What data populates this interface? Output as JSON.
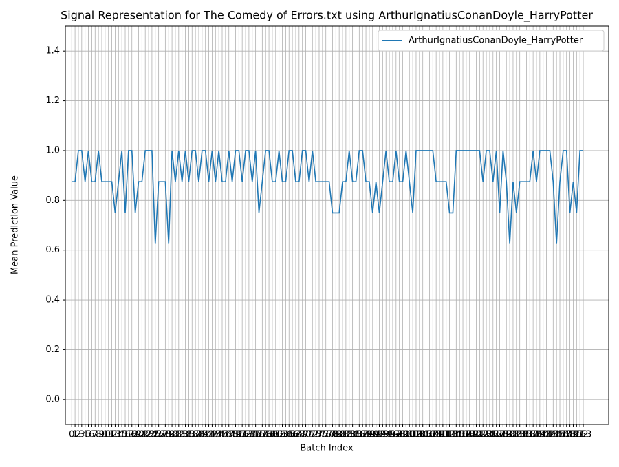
{
  "chart_data": {
    "type": "line",
    "title": "Signal Representation for The Comedy of Errors.txt using ArthurIgnatiusConanDoyle_HarryPotter",
    "x_label": "Batch Index",
    "y_label": "Mean Prediction Value",
    "x": [
      0,
      1,
      2,
      3,
      4,
      5,
      6,
      7,
      8,
      9,
      10,
      11,
      12,
      13,
      14,
      15,
      16,
      17,
      18,
      19,
      20,
      21,
      22,
      23,
      24,
      25,
      26,
      27,
      28,
      29,
      30,
      31,
      32,
      33,
      34,
      35,
      36,
      37,
      38,
      39,
      40,
      41,
      42,
      43,
      44,
      45,
      46,
      47,
      48,
      49,
      50,
      51,
      52,
      53,
      54,
      55,
      56,
      57,
      58,
      59,
      60,
      61,
      62,
      63,
      64,
      65,
      66,
      67,
      68,
      69,
      70,
      71,
      72,
      73,
      74,
      75,
      76,
      77,
      78,
      79,
      80,
      81,
      82,
      83,
      84,
      85,
      86,
      87,
      88,
      89,
      90,
      91,
      92,
      93,
      94,
      95,
      96,
      97,
      98,
      99,
      100,
      101,
      102,
      103,
      104,
      105,
      106,
      107,
      108,
      109,
      110,
      111,
      112,
      113,
      114,
      115,
      116,
      117,
      118,
      119,
      120,
      121,
      122,
      123,
      124,
      125,
      126,
      127,
      128,
      129,
      130,
      131,
      132,
      133,
      134,
      135,
      136,
      137,
      138,
      139,
      140,
      141,
      142,
      143,
      144,
      145,
      146,
      147,
      148,
      149,
      150,
      151,
      152,
      153
    ],
    "series": [
      {
        "name": "ArthurIgnatiusConanDoyle_HarryPotter",
        "color": "#1f77b4",
        "values": [
          0.875,
          0.875,
          1.0,
          1.0,
          0.875,
          1.0,
          0.875,
          0.875,
          1.0,
          0.875,
          0.875,
          0.875,
          0.875,
          0.75,
          0.875,
          1.0,
          0.75,
          1.0,
          1.0,
          0.75,
          0.875,
          0.875,
          1.0,
          1.0,
          1.0,
          0.625,
          0.875,
          0.875,
          0.875,
          0.625,
          1.0,
          0.875,
          1.0,
          0.875,
          1.0,
          0.875,
          1.0,
          1.0,
          0.875,
          1.0,
          1.0,
          0.875,
          1.0,
          0.875,
          1.0,
          0.875,
          0.875,
          1.0,
          0.875,
          1.0,
          1.0,
          0.875,
          1.0,
          1.0,
          0.875,
          1.0,
          0.75,
          0.875,
          1.0,
          1.0,
          0.875,
          0.875,
          1.0,
          0.875,
          0.875,
          1.0,
          1.0,
          0.875,
          0.875,
          1.0,
          1.0,
          0.875,
          1.0,
          0.875,
          0.875,
          0.875,
          0.875,
          0.875,
          0.75,
          0.75,
          0.75,
          0.875,
          0.875,
          1.0,
          0.875,
          0.875,
          1.0,
          1.0,
          0.875,
          0.875,
          0.75,
          0.875,
          0.75,
          0.875,
          1.0,
          0.875,
          0.875,
          1.0,
          0.875,
          0.875,
          1.0,
          0.875,
          0.75,
          1.0,
          1.0,
          1.0,
          1.0,
          1.0,
          1.0,
          0.875,
          0.875,
          0.875,
          0.875,
          0.75,
          0.75,
          1.0,
          1.0,
          1.0,
          1.0,
          1.0,
          1.0,
          1.0,
          1.0,
          0.875,
          1.0,
          1.0,
          0.875,
          1.0,
          0.75,
          1.0,
          0.875,
          0.625,
          0.875,
          0.75,
          0.875,
          0.875,
          0.875,
          0.875,
          1.0,
          0.875,
          1.0,
          1.0,
          1.0,
          1.0,
          0.875,
          0.625,
          0.875,
          1.0,
          1.0,
          0.75,
          0.875,
          0.75,
          1.0,
          1.0
        ]
      }
    ],
    "xlim": [
      -1.9,
      160.6
    ],
    "xticks": [
      0,
      1,
      2,
      3,
      4,
      5,
      6,
      7,
      8,
      9,
      10,
      11,
      12,
      13,
      14,
      15,
      16,
      17,
      18,
      19,
      20,
      21,
      22,
      23,
      24,
      25,
      26,
      27,
      28,
      29,
      30,
      31,
      32,
      33,
      34,
      35,
      36,
      37,
      38,
      39,
      40,
      41,
      42,
      43,
      44,
      45,
      46,
      47,
      48,
      49,
      50,
      51,
      52,
      53,
      54,
      55,
      56,
      57,
      58,
      59,
      60,
      61,
      62,
      63,
      64,
      65,
      66,
      67,
      68,
      69,
      70,
      71,
      72,
      73,
      74,
      75,
      76,
      77,
      78,
      79,
      80,
      81,
      82,
      83,
      84,
      85,
      86,
      87,
      88,
      89,
      90,
      91,
      92,
      93,
      94,
      95,
      96,
      97,
      98,
      99,
      100,
      101,
      102,
      103,
      104,
      105,
      106,
      107,
      108,
      109,
      110,
      111,
      112,
      113,
      114,
      115,
      116,
      117,
      118,
      119,
      120,
      121,
      122,
      123,
      124,
      125,
      126,
      127,
      128,
      129,
      130,
      131,
      132,
      133,
      134,
      135,
      136,
      137,
      138,
      139,
      140,
      141,
      142,
      143,
      144,
      145,
      146,
      147,
      148,
      149,
      150,
      151,
      152,
      153
    ],
    "ylim": [
      -0.1,
      1.5
    ],
    "yticks": [
      {
        "value": 0,
        "label": "0.0"
      },
      {
        "value": 0.2,
        "label": "0.2"
      },
      {
        "value": 0.4,
        "label": "0.4"
      },
      {
        "value": 0.6,
        "label": "0.6"
      },
      {
        "value": 0.8,
        "label": "0.8"
      },
      {
        "value": 1,
        "label": "1.0"
      },
      {
        "value": 1.2,
        "label": "1.2"
      },
      {
        "value": 1.4,
        "label": "1.4"
      }
    ],
    "grid": true,
    "legend": "upper right"
  }
}
